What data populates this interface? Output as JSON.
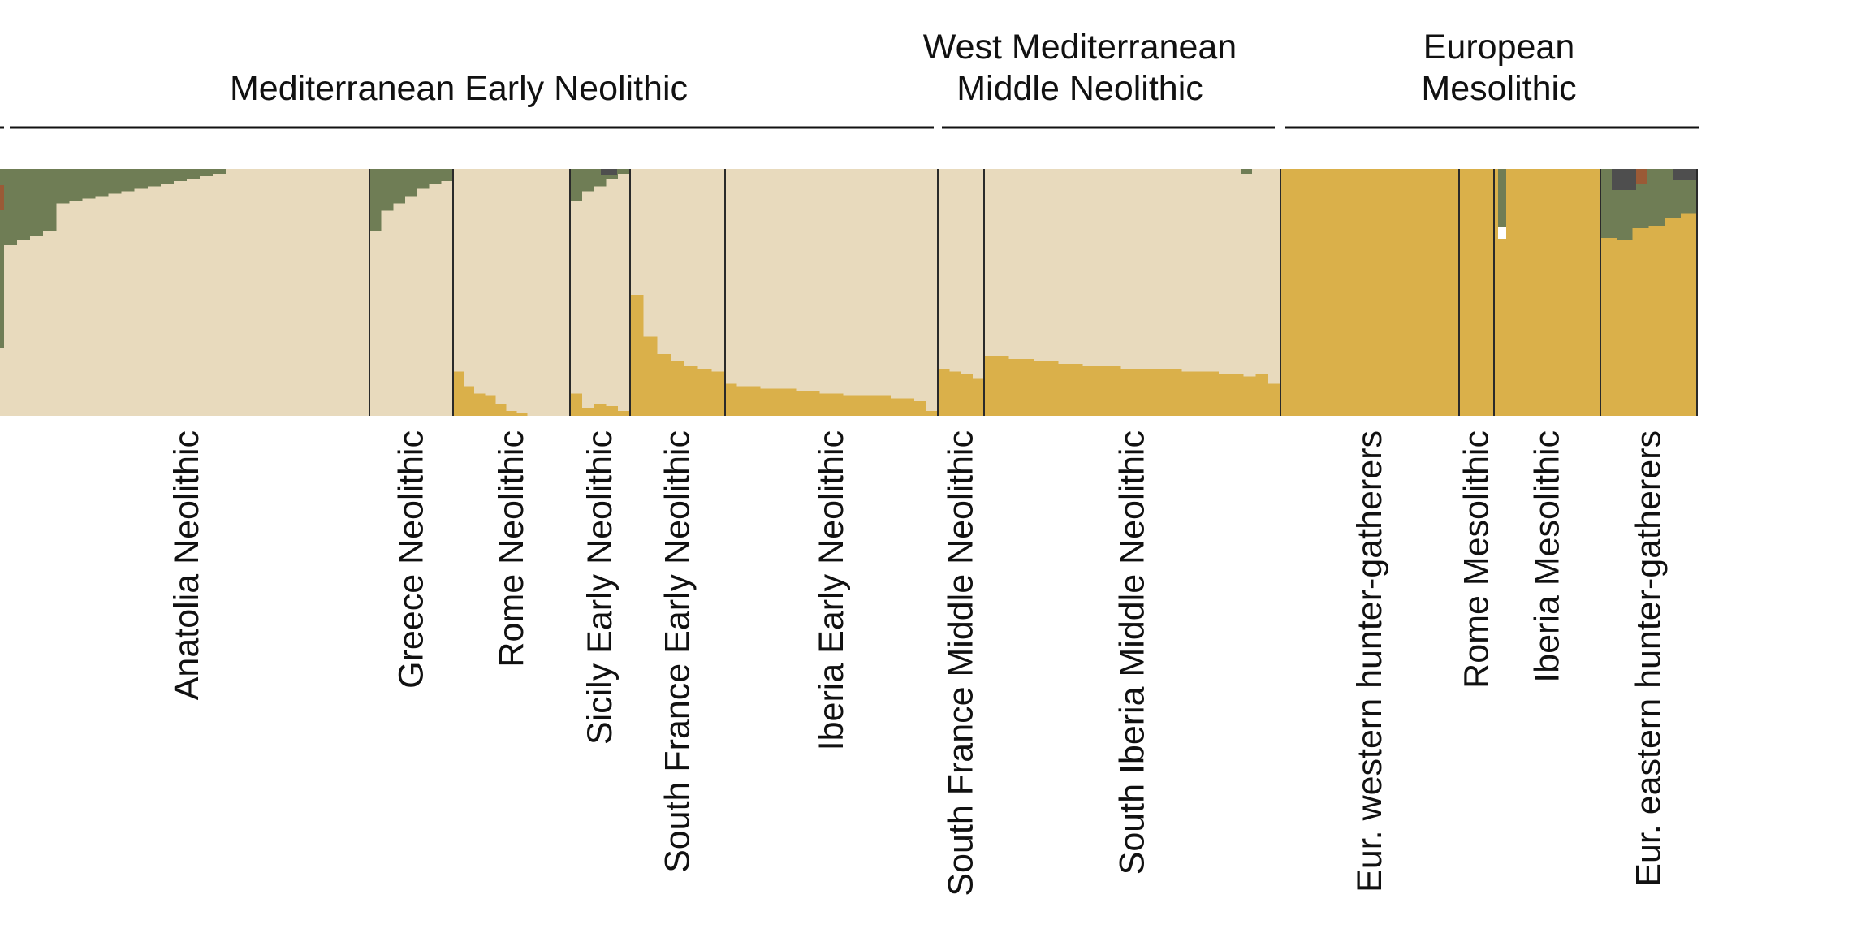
{
  "chart_data": {
    "type": "stacked-bar",
    "colors": {
      "neolithic_beige": "#E8DABD",
      "hunter_gatherer_gold": "#DAB04A",
      "steppe_green": "#6F7D55",
      "dark_grey": "#4E4E4E",
      "brown": "#9A5A36",
      "separator": "#2a2a2a"
    },
    "groups": [
      {
        "label_lines": [
          "Mediterranean Early Neolithic"
        ],
        "from": 0,
        "to": 8
      },
      {
        "label_lines": [
          "West Mediterranean",
          "Middle Neolithic"
        ],
        "from": 9,
        "to": 10
      },
      {
        "label_lines": [
          "European",
          "Mesolithic"
        ],
        "from": 11,
        "to": 15
      }
    ],
    "populations": [
      {
        "name": "Anatolia Neolithic",
        "n": 28,
        "green_top": [
          0.31,
          0.29,
          0.27,
          0.25,
          0.14,
          0.13,
          0.12,
          0.11,
          0.1,
          0.09,
          0.08,
          0.07,
          0.06,
          0.05,
          0.04,
          0.03,
          0.02,
          0,
          0,
          0,
          0,
          0,
          0,
          0,
          0,
          0,
          0,
          0
        ],
        "gold_bottom": 0
      },
      {
        "name": "Greece Neolithic",
        "n": 7,
        "green_top": [
          0.25,
          0.17,
          0.14,
          0.11,
          0.08,
          0.06,
          0.05
        ],
        "gold_bottom": 0
      },
      {
        "name": "Rome Neolithic",
        "n": 11,
        "green_top": [
          0,
          0,
          0,
          0,
          0,
          0,
          0,
          0,
          0,
          0,
          0
        ],
        "gold_bottom": [
          0.18,
          0.12,
          0.09,
          0.08,
          0.05,
          0.02,
          0.01,
          0,
          0,
          0,
          0
        ]
      },
      {
        "name": "Sicily Early Neolithic",
        "n": 5,
        "green_top": [
          0.13,
          0.09,
          0.07,
          0.04,
          0.02
        ],
        "gold_bottom": [
          0.09,
          0.03,
          0.05,
          0.04,
          0.02
        ]
      },
      {
        "name": "South France Early Neolithic",
        "n": 7,
        "green_top": 0,
        "gold_bottom": [
          0.49,
          0.32,
          0.25,
          0.22,
          0.2,
          0.19,
          0.18
        ]
      },
      {
        "name": "Iberia Early Neolithic",
        "n": 18,
        "green_top": 0,
        "gold_bottom": [
          0.13,
          0.12,
          0.12,
          0.11,
          0.11,
          0.11,
          0.1,
          0.1,
          0.09,
          0.09,
          0.08,
          0.08,
          0.08,
          0.08,
          0.07,
          0.07,
          0.06,
          0.02
        ]
      },
      {
        "name": "South France Middle Neolithic",
        "n": 4,
        "green_top": 0,
        "gold_bottom": [
          0.19,
          0.18,
          0.17,
          0.15
        ]
      },
      {
        "name": "South Iberia Middle Neolithic",
        "n": 24,
        "green_top": 0,
        "gold_bottom": [
          0.24,
          0.24,
          0.23,
          0.23,
          0.22,
          0.22,
          0.21,
          0.21,
          0.2,
          0.2,
          0.2,
          0.19,
          0.19,
          0.19,
          0.19,
          0.19,
          0.18,
          0.18,
          0.18,
          0.17,
          0.17,
          0.16,
          0.17,
          0.13
        ]
      },
      {
        "name": "Eur. western hunter-gatherers",
        "n": 12,
        "green_top": 0,
        "gold_bottom": 1
      },
      {
        "name": "Rome Mesolithic",
        "n": 3,
        "green_top": 0,
        "gold_bottom": 1
      },
      {
        "name": "Iberia Mesolithic",
        "n": 8,
        "green_top": 0,
        "gold_bottom": 1
      },
      {
        "name": "Eur. eastern hunter-gatherers",
        "n": 6,
        "green_top": [
          0.28,
          0.29,
          0.24,
          0.23,
          0.2,
          0.18
        ],
        "gold_bottom": [
          0.72,
          0.71,
          0.76,
          0.77,
          0.8,
          0.82
        ]
      }
    ]
  }
}
